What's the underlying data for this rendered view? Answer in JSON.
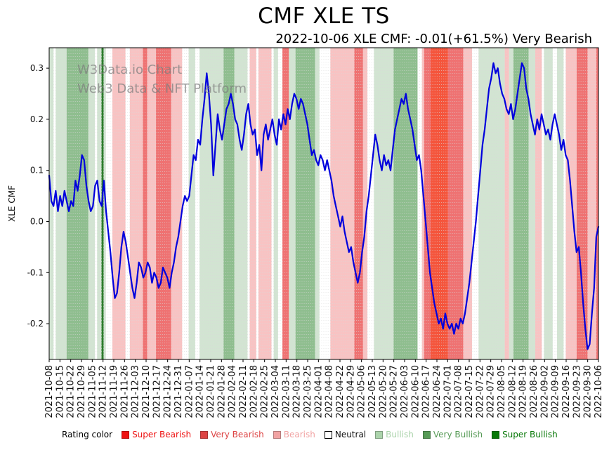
{
  "title": "CMF XLE TS",
  "subtitle": "2022-10-06 XLE CMF: -0.01(+61.5%) Very Bearish",
  "watermark": {
    "line1": "W3Data.io Chart",
    "line2": "Web3 Data & NFT Platform"
  },
  "chart_data": {
    "type": "line",
    "title": "CMF XLE TS",
    "xlabel": "",
    "ylabel": "XLE CMF",
    "ylim": [
      -0.27,
      0.34
    ],
    "grid": false,
    "yticks": [
      {
        "value": 0.3,
        "label": "0.3"
      },
      {
        "value": 0.2,
        "label": "0.2"
      },
      {
        "value": 0.1,
        "label": "0.1"
      },
      {
        "value": 0.0,
        "label": "0.0"
      },
      {
        "value": -0.1,
        "label": "-0.1"
      },
      {
        "value": -0.2,
        "label": "-0.2"
      }
    ],
    "x_tick_labels": [
      "2021-10-08",
      "2021-10-15",
      "2021-10-22",
      "2021-10-29",
      "2021-11-05",
      "2021-11-12",
      "2021-11-19",
      "2021-11-26",
      "2021-12-03",
      "2021-12-10",
      "2021-12-17",
      "2021-12-24",
      "2021-12-31",
      "2022-01-07",
      "2022-01-14",
      "2022-01-21",
      "2022-01-28",
      "2022-02-04",
      "2022-02-11",
      "2022-02-18",
      "2022-02-25",
      "2022-03-04",
      "2022-03-11",
      "2022-03-18",
      "2022-03-25",
      "2022-04-01",
      "2022-04-08",
      "2022-04-22",
      "2022-04-29",
      "2022-05-06",
      "2022-05-13",
      "2022-05-20",
      "2022-05-27",
      "2022-06-03",
      "2022-06-10",
      "2022-06-17",
      "2022-06-24",
      "2022-07-01",
      "2022-07-08",
      "2022-07-15",
      "2022-07-22",
      "2022-07-29",
      "2022-08-05",
      "2022-08-12",
      "2022-08-19",
      "2022-08-26",
      "2022-09-02",
      "2022-09-09",
      "2022-09-16",
      "2022-09-23",
      "2022-09-30",
      "2022-10-06"
    ],
    "series": [
      {
        "name": "XLE CMF",
        "color": "#0000dd",
        "values": [
          0.09,
          0.04,
          0.03,
          0.06,
          0.02,
          0.05,
          0.03,
          0.06,
          0.04,
          0.02,
          0.04,
          0.03,
          0.08,
          0.06,
          0.09,
          0.13,
          0.12,
          0.07,
          0.04,
          0.02,
          0.03,
          0.07,
          0.08,
          0.04,
          0.03,
          0.08,
          0.02,
          -0.02,
          -0.06,
          -0.11,
          -0.15,
          -0.14,
          -0.1,
          -0.05,
          -0.02,
          -0.04,
          -0.07,
          -0.1,
          -0.13,
          -0.15,
          -0.12,
          -0.08,
          -0.09,
          -0.11,
          -0.1,
          -0.08,
          -0.09,
          -0.12,
          -0.1,
          -0.11,
          -0.13,
          -0.12,
          -0.09,
          -0.1,
          -0.11,
          -0.13,
          -0.1,
          -0.08,
          -0.05,
          -0.03,
          0.0,
          0.03,
          0.05,
          0.04,
          0.05,
          0.09,
          0.13,
          0.12,
          0.16,
          0.15,
          0.2,
          0.24,
          0.29,
          0.25,
          0.19,
          0.09,
          0.15,
          0.21,
          0.18,
          0.16,
          0.19,
          0.22,
          0.23,
          0.25,
          0.23,
          0.2,
          0.19,
          0.16,
          0.14,
          0.17,
          0.21,
          0.23,
          0.19,
          0.17,
          0.18,
          0.13,
          0.15,
          0.1,
          0.17,
          0.19,
          0.16,
          0.18,
          0.2,
          0.17,
          0.15,
          0.2,
          0.18,
          0.21,
          0.19,
          0.22,
          0.2,
          0.23,
          0.25,
          0.24,
          0.22,
          0.24,
          0.23,
          0.21,
          0.19,
          0.16,
          0.13,
          0.14,
          0.12,
          0.11,
          0.13,
          0.12,
          0.1,
          0.12,
          0.1,
          0.08,
          0.05,
          0.03,
          0.01,
          -0.01,
          0.01,
          -0.02,
          -0.04,
          -0.06,
          -0.05,
          -0.08,
          -0.1,
          -0.12,
          -0.1,
          -0.06,
          -0.03,
          0.02,
          0.05,
          0.09,
          0.13,
          0.17,
          0.15,
          0.12,
          0.1,
          0.13,
          0.11,
          0.12,
          0.1,
          0.14,
          0.18,
          0.2,
          0.22,
          0.24,
          0.23,
          0.25,
          0.22,
          0.2,
          0.18,
          0.15,
          0.12,
          0.13,
          0.1,
          0.05,
          0.0,
          -0.05,
          -0.1,
          -0.13,
          -0.16,
          -0.18,
          -0.2,
          -0.19,
          -0.21,
          -0.18,
          -0.2,
          -0.21,
          -0.2,
          -0.22,
          -0.2,
          -0.21,
          -0.19,
          -0.2,
          -0.18,
          -0.15,
          -0.12,
          -0.08,
          -0.04,
          0.0,
          0.05,
          0.1,
          0.15,
          0.18,
          0.22,
          0.26,
          0.28,
          0.31,
          0.29,
          0.3,
          0.27,
          0.25,
          0.24,
          0.22,
          0.21,
          0.23,
          0.2,
          0.22,
          0.25,
          0.28,
          0.31,
          0.3,
          0.26,
          0.24,
          0.21,
          0.19,
          0.17,
          0.2,
          0.18,
          0.21,
          0.19,
          0.17,
          0.18,
          0.16,
          0.19,
          0.21,
          0.19,
          0.17,
          0.14,
          0.16,
          0.13,
          0.12,
          0.08,
          0.03,
          -0.02,
          -0.06,
          -0.05,
          -0.1,
          -0.16,
          -0.21,
          -0.25,
          -0.24,
          -0.18,
          -0.13,
          -0.03,
          -0.01
        ]
      }
    ],
    "rating_colors": {
      "super_bearish": "#f5553c",
      "very_bearish": "#ef7272",
      "bearish": "#f8c3c3",
      "neutral": "#ffffff",
      "bullish": "#d2e4d2",
      "very_bullish": "#8fbe8f",
      "super_bullish": "#2e7d2e"
    },
    "rating_bands": [
      {
        "from": 0,
        "to": 1,
        "rating": "bullish"
      },
      {
        "from": 2,
        "to": 2,
        "rating": "neutral"
      },
      {
        "from": 3,
        "to": 7,
        "rating": "bullish"
      },
      {
        "from": 8,
        "to": 17,
        "rating": "very_bullish"
      },
      {
        "from": 18,
        "to": 20,
        "rating": "bullish"
      },
      {
        "from": 21,
        "to": 21,
        "rating": "neutral"
      },
      {
        "from": 22,
        "to": 23,
        "rating": "bullish"
      },
      {
        "from": 24,
        "to": 24,
        "rating": "super_bullish"
      },
      {
        "from": 25,
        "to": 25,
        "rating": "bullish"
      },
      {
        "from": 26,
        "to": 28,
        "rating": "neutral"
      },
      {
        "from": 29,
        "to": 34,
        "rating": "bearish"
      },
      {
        "from": 35,
        "to": 36,
        "rating": "neutral"
      },
      {
        "from": 37,
        "to": 42,
        "rating": "bearish"
      },
      {
        "from": 43,
        "to": 44,
        "rating": "very_bearish"
      },
      {
        "from": 45,
        "to": 48,
        "rating": "bearish"
      },
      {
        "from": 49,
        "to": 55,
        "rating": "very_bearish"
      },
      {
        "from": 56,
        "to": 60,
        "rating": "bearish"
      },
      {
        "from": 61,
        "to": 63,
        "rating": "neutral"
      },
      {
        "from": 64,
        "to": 66,
        "rating": "bullish"
      },
      {
        "from": 67,
        "to": 68,
        "rating": "neutral"
      },
      {
        "from": 69,
        "to": 79,
        "rating": "bullish"
      },
      {
        "from": 80,
        "to": 84,
        "rating": "very_bullish"
      },
      {
        "from": 85,
        "to": 90,
        "rating": "bullish"
      },
      {
        "from": 91,
        "to": 91,
        "rating": "neutral"
      },
      {
        "from": 92,
        "to": 94,
        "rating": "bearish"
      },
      {
        "from": 95,
        "to": 95,
        "rating": "neutral"
      },
      {
        "from": 96,
        "to": 101,
        "rating": "bearish"
      },
      {
        "from": 102,
        "to": 102,
        "rating": "neutral"
      },
      {
        "from": 103,
        "to": 104,
        "rating": "bullish"
      },
      {
        "from": 105,
        "to": 106,
        "rating": "neutral"
      },
      {
        "from": 107,
        "to": 109,
        "rating": "very_bearish"
      },
      {
        "from": 110,
        "to": 112,
        "rating": "bullish"
      },
      {
        "from": 113,
        "to": 121,
        "rating": "very_bullish"
      },
      {
        "from": 122,
        "to": 123,
        "rating": "bullish"
      },
      {
        "from": 124,
        "to": 128,
        "rating": "neutral"
      },
      {
        "from": 129,
        "to": 139,
        "rating": "bearish"
      },
      {
        "from": 140,
        "to": 143,
        "rating": "very_bearish"
      },
      {
        "from": 144,
        "to": 145,
        "rating": "bearish"
      },
      {
        "from": 146,
        "to": 148,
        "rating": "neutral"
      },
      {
        "from": 149,
        "to": 157,
        "rating": "bullish"
      },
      {
        "from": 158,
        "to": 168,
        "rating": "very_bullish"
      },
      {
        "from": 169,
        "to": 170,
        "rating": "neutral"
      },
      {
        "from": 171,
        "to": 171,
        "rating": "bearish"
      },
      {
        "from": 172,
        "to": 174,
        "rating": "very_bearish"
      },
      {
        "from": 175,
        "to": 182,
        "rating": "super_bearish"
      },
      {
        "from": 183,
        "to": 189,
        "rating": "very_bearish"
      },
      {
        "from": 190,
        "to": 193,
        "rating": "bearish"
      },
      {
        "from": 194,
        "to": 196,
        "rating": "neutral"
      },
      {
        "from": 197,
        "to": 208,
        "rating": "bullish"
      },
      {
        "from": 209,
        "to": 210,
        "rating": "bearish"
      },
      {
        "from": 211,
        "to": 212,
        "rating": "bullish"
      },
      {
        "from": 213,
        "to": 219,
        "rating": "very_bullish"
      },
      {
        "from": 220,
        "to": 222,
        "rating": "bullish"
      },
      {
        "from": 223,
        "to": 225,
        "rating": "bearish"
      },
      {
        "from": 226,
        "to": 226,
        "rating": "neutral"
      },
      {
        "from": 227,
        "to": 230,
        "rating": "bullish"
      },
      {
        "from": 231,
        "to": 232,
        "rating": "neutral"
      },
      {
        "from": 233,
        "to": 235,
        "rating": "bullish"
      },
      {
        "from": 236,
        "to": 236,
        "rating": "neutral"
      },
      {
        "from": 237,
        "to": 241,
        "rating": "bearish"
      },
      {
        "from": 242,
        "to": 246,
        "rating": "very_bearish"
      },
      {
        "from": 247,
        "to": 250,
        "rating": "bearish"
      },
      {
        "from": 251,
        "to": 251,
        "rating": "very_bearish"
      }
    ],
    "legend": {
      "label": "Rating color",
      "items": [
        {
          "label": "Super Bearish",
          "color": "#ee1111",
          "text_color": "#ee1111"
        },
        {
          "label": "Very Bearish",
          "color": "#dd4444",
          "text_color": "#dd4444"
        },
        {
          "label": "Bearish",
          "color": "#f1a3a3",
          "text_color": "#f1a3a3"
        },
        {
          "label": "Neutral",
          "color": "#ffffff",
          "text_color": "#111111"
        },
        {
          "label": "Bullish",
          "color": "#abd3ab",
          "text_color": "#abd3ab"
        },
        {
          "label": "Very Bullish",
          "color": "#569a56",
          "text_color": "#569a56"
        },
        {
          "label": "Super Bullish",
          "color": "#077807",
          "text_color": "#077807"
        }
      ]
    }
  }
}
